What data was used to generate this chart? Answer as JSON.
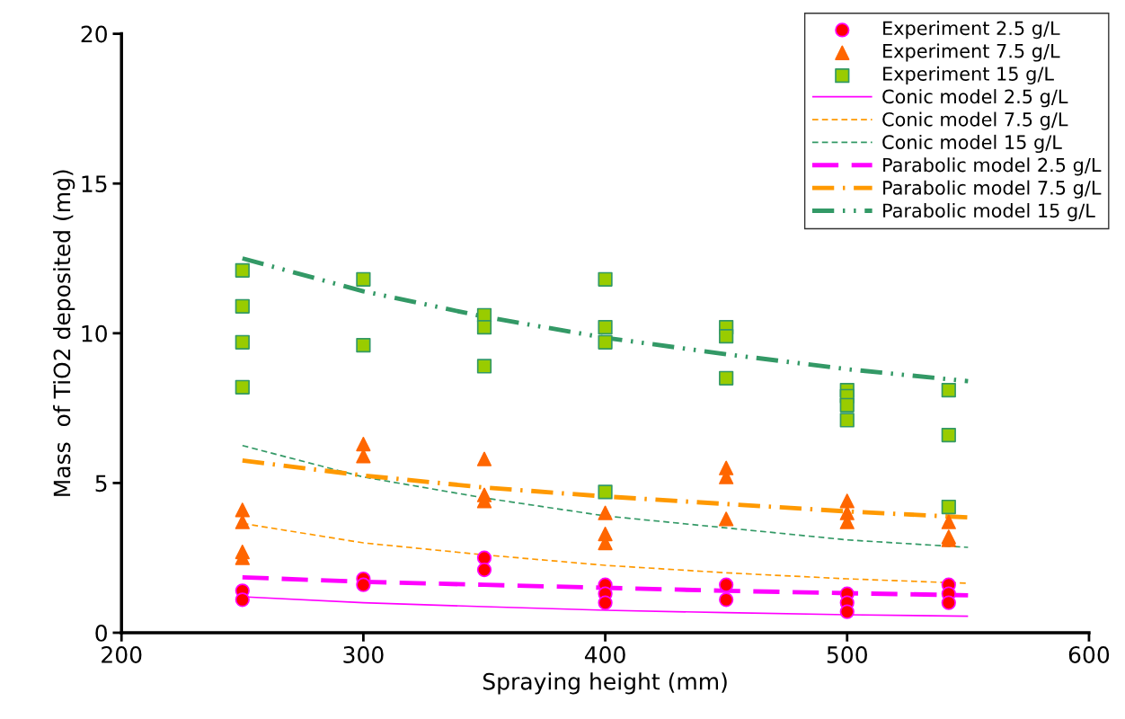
{
  "chart_data": {
    "type": "scatter",
    "xlabel": "Spraying height (mm)",
    "ylabel": "Mass  of TiO2 deposited (mg)",
    "xlim": [
      200,
      600
    ],
    "xticks": [
      200,
      300,
      400,
      500,
      600
    ],
    "ylim": [
      0,
      20
    ],
    "yticks": [
      0,
      5,
      10,
      15,
      20
    ],
    "grid": false,
    "legend": "top right",
    "series": [
      {
        "name": "Experiment 2.5 g/L",
        "marker": "circle",
        "color": "#ff0000",
        "x": [
          250,
          250,
          300,
          300,
          350,
          350,
          400,
          400,
          400,
          450,
          450,
          500,
          500,
          500,
          542,
          542,
          542
        ],
        "values": [
          1.4,
          1.1,
          1.8,
          1.6,
          2.5,
          2.1,
          1.6,
          1.3,
          1.0,
          1.6,
          1.1,
          1.3,
          1.0,
          0.7,
          1.6,
          1.3,
          1.0
        ]
      },
      {
        "name": "Experiment 7.5 g/L",
        "marker": "triangle",
        "color": "#ff6600",
        "x": [
          250,
          250,
          250,
          250,
          300,
          300,
          350,
          350,
          350,
          400,
          400,
          400,
          450,
          450,
          450,
          500,
          500,
          500,
          542,
          542,
          542
        ],
        "values": [
          4.1,
          3.7,
          2.7,
          2.5,
          6.3,
          5.9,
          5.8,
          4.6,
          4.4,
          4.0,
          3.3,
          3.0,
          5.5,
          5.2,
          3.8,
          4.4,
          4.0,
          3.7,
          3.7,
          3.2,
          3.1
        ]
      },
      {
        "name": "Experiment 15 g/L",
        "marker": "square",
        "color": "#99cc00",
        "x": [
          250,
          250,
          250,
          250,
          300,
          300,
          350,
          350,
          350,
          400,
          400,
          400,
          400,
          450,
          450,
          450,
          500,
          500,
          500,
          500,
          542,
          542,
          542
        ],
        "values": [
          12.1,
          10.9,
          9.7,
          8.2,
          11.8,
          9.6,
          10.6,
          10.2,
          8.9,
          11.8,
          10.2,
          9.7,
          4.7,
          10.2,
          9.9,
          8.5,
          8.1,
          7.9,
          7.6,
          7.1,
          8.1,
          6.6,
          4.2
        ]
      },
      {
        "name": "Conic model 2.5 g/L",
        "type": "line",
        "line_style": "solid",
        "color": "#ff00ff",
        "x": [
          250,
          300,
          350,
          400,
          450,
          500,
          550
        ],
        "values": [
          1.2,
          1.0,
          0.87,
          0.75,
          0.67,
          0.6,
          0.55
        ]
      },
      {
        "name": "Conic model 7.5 g/L",
        "type": "line",
        "line_style": "dashed",
        "color": "#ff9900",
        "x": [
          250,
          300,
          350,
          400,
          450,
          500,
          550
        ],
        "values": [
          3.65,
          3.0,
          2.6,
          2.25,
          2.0,
          1.8,
          1.65
        ]
      },
      {
        "name": "Conic model 15 g/L",
        "type": "line",
        "line_style": "dashed",
        "color": "#339966",
        "x": [
          250,
          300,
          350,
          400,
          450,
          500,
          550
        ],
        "values": [
          6.25,
          5.2,
          4.5,
          3.9,
          3.5,
          3.1,
          2.85
        ]
      },
      {
        "name": "Parabolic model 2.5 g/L",
        "type": "line",
        "line_style": "longdashed",
        "color": "#ff00ff",
        "x": [
          250,
          300,
          350,
          400,
          450,
          500,
          550
        ],
        "values": [
          1.85,
          1.7,
          1.6,
          1.5,
          1.4,
          1.32,
          1.25
        ]
      },
      {
        "name": "Parabolic model 7.5 g/L",
        "type": "line",
        "line_style": "dashdot",
        "color": "#ff9900",
        "x": [
          250,
          300,
          350,
          400,
          450,
          500,
          550
        ],
        "values": [
          5.75,
          5.25,
          4.85,
          4.55,
          4.3,
          4.05,
          3.85
        ]
      },
      {
        "name": "Parabolic model 15 g/L",
        "type": "line",
        "line_style": "dashdotdot",
        "color": "#339966",
        "x": [
          250,
          300,
          350,
          400,
          450,
          500,
          550
        ],
        "values": [
          12.5,
          11.4,
          10.55,
          9.85,
          9.3,
          8.8,
          8.4
        ]
      }
    ]
  }
}
